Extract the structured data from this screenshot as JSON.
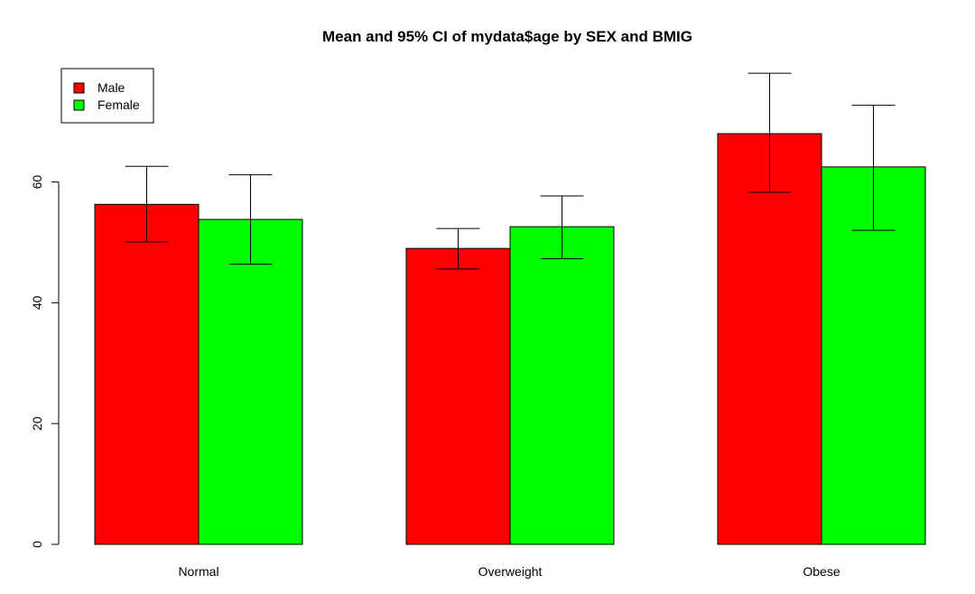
{
  "chart_data": {
    "type": "bar",
    "title": "Mean and 95% CI of mydata$age by SEX and BMIG",
    "xlabel": "",
    "ylabel": "",
    "categories": [
      "Normal",
      "Overweight",
      "Obese"
    ],
    "ylim": [
      0,
      80
    ],
    "y_ticks": [
      0,
      20,
      40,
      60
    ],
    "grid": false,
    "legend_position": "top-left",
    "series": [
      {
        "name": "Male",
        "color": "#ff0000",
        "values": [
          56.3,
          49.0,
          68.0
        ],
        "ci_low": [
          50.1,
          45.6,
          58.3
        ],
        "ci_high": [
          62.6,
          52.3,
          78.0
        ]
      },
      {
        "name": "Female",
        "color": "#00ff00",
        "values": [
          53.8,
          52.6,
          62.5
        ],
        "ci_low": [
          46.4,
          47.3,
          52.0
        ],
        "ci_high": [
          61.2,
          57.7,
          72.7
        ]
      }
    ]
  }
}
